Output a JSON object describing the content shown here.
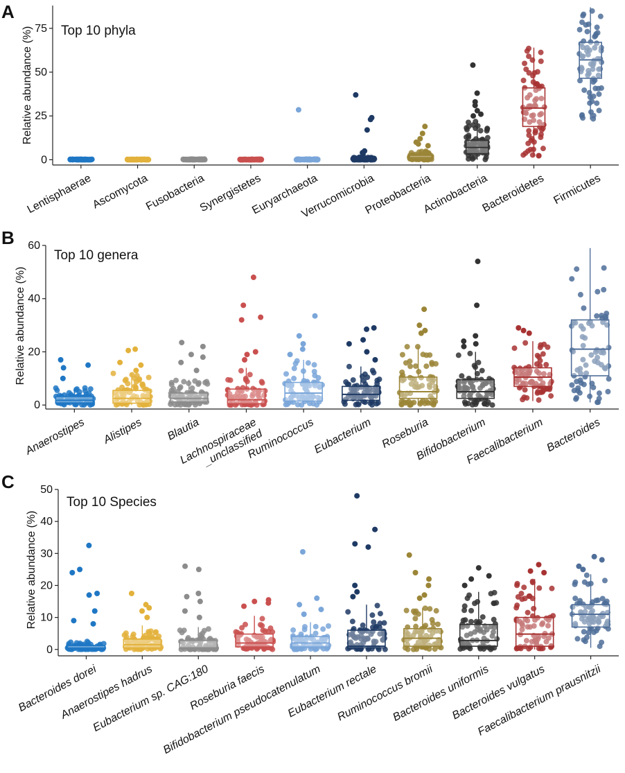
{
  "figure": {
    "panels": [
      {
        "letter": "A",
        "title": "Top 10 phyla",
        "ylabel": "Relative abundance (%)"
      },
      {
        "letter": "B",
        "title": "Top 10 genera",
        "ylabel": "Relative abundance (%)"
      },
      {
        "letter": "C",
        "title": "Top 10 Species",
        "ylabel": "Relative abundance (%)"
      }
    ]
  },
  "chart_data": [
    {
      "type": "box",
      "panel": "A",
      "title": "Top 10 phyla",
      "xlabel": "",
      "ylabel": "Relative abundance (%)",
      "ylim": [
        -3,
        88
      ],
      "yticks": [
        0,
        25,
        50,
        75
      ],
      "italic_labels": false,
      "categories": [
        "Lentisphaerae",
        "Ascomycota",
        "Fusobacteria",
        "Synergistetes",
        "Euryarchaeota",
        "Verrucomicrobia",
        "Proteobacteria",
        "Actinobacteria",
        "Bacteroidetes",
        "Firmicutes"
      ],
      "colors": [
        "#1f77c4",
        "#e3b23c",
        "#8c8c8c",
        "#c9504f",
        "#7aa6d9",
        "#1e3a64",
        "#9b8537",
        "#333333",
        "#a83232",
        "#4f6e99"
      ],
      "boxes": [
        {
          "q1": 0,
          "median": 0,
          "q3": 0.2,
          "whisker_low": 0,
          "whisker_high": 0.3
        },
        {
          "q1": 0,
          "median": 0,
          "q3": 0.2,
          "whisker_low": 0,
          "whisker_high": 0.3
        },
        {
          "q1": 0,
          "median": 0,
          "q3": 0.2,
          "whisker_low": 0,
          "whisker_high": 0.4
        },
        {
          "q1": 0,
          "median": 0,
          "q3": 0.2,
          "whisker_low": 0,
          "whisker_high": 0.4
        },
        {
          "q1": 0,
          "median": 0,
          "q3": 0.2,
          "whisker_low": 0,
          "whisker_high": 0.4
        },
        {
          "q1": 0,
          "median": 0.2,
          "q3": 0.8,
          "whisker_low": 0,
          "whisker_high": 1.5
        },
        {
          "q1": 0.5,
          "median": 1.2,
          "q3": 2.5,
          "whisker_low": 0,
          "whisker_high": 5
        },
        {
          "q1": 3.5,
          "median": 7,
          "q3": 11,
          "whisker_low": 0,
          "whisker_high": 22
        },
        {
          "q1": 19,
          "median": 29.5,
          "q3": 41,
          "whisker_low": 2,
          "whisker_high": 64
        },
        {
          "q1": 46.5,
          "median": 57,
          "q3": 67,
          "whisker_low": 23,
          "whisker_high": 87
        }
      ],
      "outliers": [
        [],
        [],
        [],
        [],
        [
          28.5
        ],
        [
          37,
          24,
          23,
          17,
          5,
          4,
          3
        ],
        [
          19,
          15,
          12,
          10,
          9,
          8
        ],
        [
          54,
          38,
          33,
          31,
          28,
          26,
          25
        ],
        [],
        []
      ]
    },
    {
      "type": "box",
      "panel": "B",
      "title": "Top 10 genera",
      "xlabel": "",
      "ylabel": "Relative abundance (%)",
      "ylim": [
        -1.5,
        60
      ],
      "yticks": [
        0,
        20,
        40,
        60
      ],
      "italic_labels": true,
      "categories": [
        "Anaerostipes",
        "Alistipes",
        "Blautia",
        "Lachnospiraceae\n_unclassified",
        "Ruminococcus",
        "Eubacterium",
        "Roseburia",
        "Bifidobacterium",
        "Faecalibacterium",
        "Bacteroides"
      ],
      "colors": [
        "#1f77c4",
        "#e3b23c",
        "#8c8c8c",
        "#c9504f",
        "#7aa6d9",
        "#1e3a64",
        "#9b8537",
        "#333333",
        "#a83232",
        "#4f6e99"
      ],
      "boxes": [
        {
          "q1": 0.8,
          "median": 1.8,
          "q3": 3.2,
          "whisker_low": 0,
          "whisker_high": 6.5
        },
        {
          "q1": 0.7,
          "median": 2.5,
          "q3": 5.5,
          "whisker_low": 0,
          "whisker_high": 12
        },
        {
          "q1": 1.2,
          "median": 2.5,
          "q3": 4.5,
          "whisker_low": 0,
          "whisker_high": 9.5
        },
        {
          "q1": 0.5,
          "median": 2,
          "q3": 6,
          "whisker_low": 0,
          "whisker_high": 14
        },
        {
          "q1": 1.5,
          "median": 4.5,
          "q3": 8.5,
          "whisker_low": 0,
          "whisker_high": 17
        },
        {
          "q1": 1.8,
          "median": 4,
          "q3": 7,
          "whisker_low": 0,
          "whisker_high": 14.5
        },
        {
          "q1": 2.5,
          "median": 5,
          "q3": 10.5,
          "whisker_low": 0,
          "whisker_high": 22
        },
        {
          "q1": 2.5,
          "median": 5,
          "q3": 9.5,
          "whisker_low": 0,
          "whisker_high": 20
        },
        {
          "q1": 7,
          "median": 10.5,
          "q3": 14,
          "whisker_low": 1.5,
          "whisker_high": 24
        },
        {
          "q1": 11,
          "median": 21,
          "q3": 32,
          "whisker_low": 1,
          "whisker_high": 59
        }
      ],
      "outliers": [
        [
          17,
          15,
          14,
          10
        ],
        [
          21,
          20.5,
          16,
          15,
          13
        ],
        [
          23.5,
          22,
          19,
          18,
          16,
          13
        ],
        [
          48,
          37.5,
          33,
          32,
          20,
          19,
          17
        ],
        [
          33.5,
          26,
          23,
          21,
          19
        ],
        [
          29,
          28.5,
          24.5,
          23,
          20,
          17
        ],
        [
          36,
          30,
          28,
          27
        ],
        [
          54,
          37.5,
          26,
          24,
          23,
          22
        ],
        [
          29,
          28,
          27
        ],
        []
      ]
    },
    {
      "type": "box",
      "panel": "C",
      "title": "Top 10 Species",
      "xlabel": "",
      "ylabel": "Relative abundance (%)",
      "ylim": [
        -2,
        50
      ],
      "yticks": [
        0,
        10,
        20,
        30,
        40,
        50
      ],
      "italic_labels": true,
      "categories": [
        "Bacteroides dorei",
        "Anaerostipes hadrus",
        "Eubacterium sp. CAG:180",
        "Roseburia faecis",
        "Bifidobacterium pseudocatenulatum",
        "Eubacterium rectale",
        "Ruminococcus bromii",
        "Bacteroides uniformis",
        "Bacteroides vulgatus",
        "Faecalibacterium prausnitzii"
      ],
      "colors": [
        "#1f77c4",
        "#e3b23c",
        "#8c8c8c",
        "#c9504f",
        "#7aa6d9",
        "#1e3a64",
        "#9b8537",
        "#333333",
        "#a83232",
        "#4f6e99"
      ],
      "boxes": [
        {
          "q1": 0.1,
          "median": 0.4,
          "q3": 1.2,
          "whisker_low": 0,
          "whisker_high": 2.5
        },
        {
          "q1": 0.5,
          "median": 1.5,
          "q3": 3.2,
          "whisker_low": 0,
          "whisker_high": 7.5
        },
        {
          "q1": 0.1,
          "median": 0.5,
          "q3": 2.8,
          "whisker_low": 0,
          "whisker_high": 7
        },
        {
          "q1": 0.8,
          "median": 2,
          "q3": 4.8,
          "whisker_low": 0,
          "whisker_high": 10.5
        },
        {
          "q1": 0.8,
          "median": 2,
          "q3": 4,
          "whisker_low": 0,
          "whisker_high": 8.5
        },
        {
          "q1": 0.5,
          "median": 1,
          "q3": 6,
          "whisker_low": 0,
          "whisker_high": 14
        },
        {
          "q1": 1,
          "median": 3.5,
          "q3": 6.5,
          "whisker_low": 0,
          "whisker_high": 13
        },
        {
          "q1": 1,
          "median": 2.8,
          "q3": 7.8,
          "whisker_low": 0,
          "whisker_high": 18
        },
        {
          "q1": 1,
          "median": 4.8,
          "q3": 10,
          "whisker_low": 0,
          "whisker_high": 22
        },
        {
          "q1": 7,
          "median": 11,
          "q3": 14,
          "whisker_low": 0.5,
          "whisker_high": 23.5
        }
      ],
      "outliers": [
        [
          32.5,
          25,
          24,
          17.5,
          17,
          12,
          9,
          8
        ],
        [
          17.5,
          14,
          13,
          12,
          10
        ],
        [
          26,
          25,
          17.5,
          16.5,
          15,
          12,
          10
        ],
        [
          15.5,
          15,
          14.5,
          13.5
        ],
        [
          30.5,
          16,
          14,
          12.5,
          11
        ],
        [
          48,
          37.5,
          33,
          32,
          20,
          18,
          16.5
        ],
        [
          29.5,
          24,
          22,
          20,
          17,
          16
        ],
        [
          25.5,
          23,
          22,
          20
        ],
        [
          26.5,
          24.5,
          24
        ],
        [
          29,
          28,
          26,
          25
        ]
      ]
    }
  ]
}
